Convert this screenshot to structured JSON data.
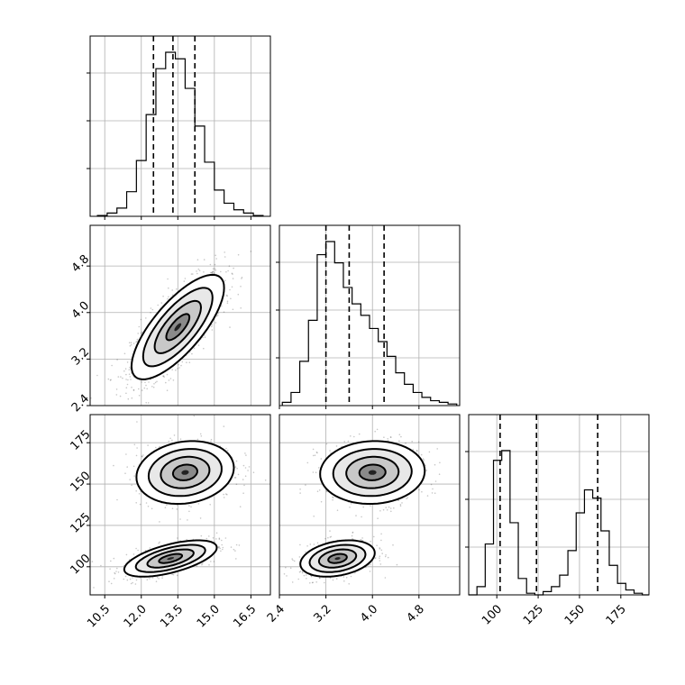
{
  "chart_data": {
    "type": "corner",
    "grid": true,
    "parameters": [
      {
        "ticks": [
          10.5,
          12.0,
          13.5,
          15.0,
          16.5
        ],
        "tick_labels": [
          "10.5",
          "12.0",
          "13.5",
          "15.0",
          "16.5"
        ],
        "range": [
          9.9,
          17.3
        ]
      },
      {
        "ticks": [
          2.4,
          3.2,
          4.0,
          4.8
        ],
        "tick_labels": [
          "2.4",
          "3.2",
          "4.0",
          "4.8"
        ],
        "range": [
          2.4,
          5.5
        ]
      },
      {
        "ticks": [
          100,
          125,
          150,
          175
        ],
        "tick_labels": [
          "100",
          "125",
          "150",
          "175"
        ],
        "range": [
          83,
          192
        ]
      }
    ],
    "histograms": [
      {
        "bins": [
          10.2,
          10.6,
          11.0,
          11.4,
          11.8,
          12.2,
          12.6,
          13.0,
          13.4,
          13.8,
          14.2,
          14.6,
          15.0,
          15.4,
          15.8,
          16.2,
          16.6,
          17.0
        ],
        "counts": [
          0.005,
          0.02,
          0.05,
          0.15,
          0.34,
          0.62,
          0.9,
          1.0,
          0.96,
          0.78,
          0.55,
          0.33,
          0.16,
          0.08,
          0.04,
          0.02,
          0.005
        ]
      },
      {
        "bins": [
          2.45,
          2.6,
          2.75,
          2.9,
          3.05,
          3.2,
          3.35,
          3.5,
          3.65,
          3.8,
          3.95,
          4.1,
          4.25,
          4.4,
          4.55,
          4.7,
          4.85,
          5.0,
          5.15,
          5.3,
          5.45
        ],
        "counts": [
          0.02,
          0.08,
          0.27,
          0.52,
          0.92,
          1.0,
          0.87,
          0.72,
          0.62,
          0.55,
          0.47,
          0.39,
          0.3,
          0.2,
          0.13,
          0.08,
          0.05,
          0.03,
          0.02,
          0.01
        ]
      },
      {
        "bins": [
          83,
          88,
          93,
          98,
          103,
          108,
          113,
          118,
          123,
          128,
          133,
          138,
          143,
          148,
          153,
          158,
          163,
          168,
          173,
          178,
          183,
          188,
          192
        ],
        "counts": [
          0.0,
          0.05,
          0.31,
          0.82,
          0.88,
          0.44,
          0.1,
          0.01,
          0.0,
          0.02,
          0.05,
          0.12,
          0.27,
          0.5,
          0.64,
          0.59,
          0.39,
          0.18,
          0.07,
          0.03,
          0.01,
          0.0
        ]
      }
    ],
    "quantile_lines": [
      [
        12.5,
        13.3,
        14.2
      ],
      [
        3.2,
        3.6,
        4.2
      ],
      [
        102,
        124,
        161
      ]
    ],
    "scatter_blobs": [
      {
        "panel": [
          1,
          0
        ],
        "components": [
          {
            "mean": [
              13.5,
              3.75
            ],
            "sd": [
              0.95,
              0.45
            ],
            "rho": 0.75,
            "weight": 1.0
          }
        ]
      },
      {
        "panel": [
          2,
          0
        ],
        "components": [
          {
            "mean": [
              13.2,
              105
            ],
            "sd": [
              0.95,
              5.5
            ],
            "rho": 0.6,
            "weight": 0.5
          },
          {
            "mean": [
              13.8,
              157
            ],
            "sd": [
              1.0,
              9.5
            ],
            "rho": 0.15,
            "weight": 0.5
          }
        ]
      },
      {
        "panel": [
          2,
          1
        ],
        "components": [
          {
            "mean": [
              3.4,
              105
            ],
            "sd": [
              0.32,
              5.5
            ],
            "rho": 0.3,
            "weight": 0.5
          },
          {
            "mean": [
              4.0,
              157
            ],
            "sd": [
              0.45,
              9.5
            ],
            "rho": 0.05,
            "weight": 0.5
          }
        ]
      }
    ]
  }
}
